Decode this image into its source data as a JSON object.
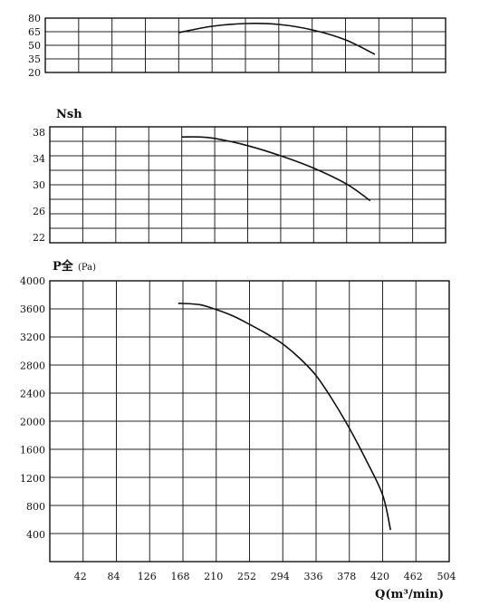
{
  "chart_data": [
    {
      "type": "line",
      "title": "",
      "ylabel": "",
      "xlabel": "",
      "y_ticks": [
        "80",
        "65",
        "50",
        "35",
        "20"
      ],
      "ylim": [
        20,
        80
      ],
      "xlim": [
        0,
        504
      ],
      "grid": true,
      "series": [
        {
          "x": [
            168,
            210,
            252,
            294,
            336,
            378,
            415
          ],
          "y": [
            64,
            71,
            74,
            73,
            67,
            56,
            40
          ]
        }
      ]
    },
    {
      "type": "line",
      "title": "",
      "ylabel": "Nsh",
      "xlabel": "",
      "y_ticks": [
        "38",
        "34",
        "30",
        "26",
        "22"
      ],
      "ylim": [
        22,
        38
      ],
      "xlim": [
        0,
        504
      ],
      "grid": true,
      "series": [
        {
          "x": [
            168,
            189,
            210,
            252,
            294,
            336,
            378,
            408
          ],
          "y": [
            36.6,
            36.6,
            36.4,
            35.4,
            34.0,
            32.3,
            30.1,
            27.8
          ]
        }
      ]
    },
    {
      "type": "line",
      "title": "",
      "ylabel": "P全",
      "ylabel_unit": "(Pa)",
      "xlabel": "Q(m³/min)",
      "x_tick_labels": [
        "42",
        "84",
        "126",
        "168",
        "210",
        "252",
        "294",
        "336",
        "378",
        "420",
        "462",
        "504"
      ],
      "y_ticks": [
        "4000",
        "3600",
        "3200",
        "2800",
        "2400",
        "2000",
        "1600",
        "1200",
        "800",
        "400"
      ],
      "ylim": [
        0,
        4000
      ],
      "xlim": [
        0,
        504
      ],
      "grid": true,
      "series": [
        {
          "x": [
            162,
            189,
            210,
            231,
            252,
            273,
            294,
            315,
            336,
            357,
            378,
            399,
            420,
            430
          ],
          "y": [
            3680,
            3660,
            3590,
            3500,
            3380,
            3250,
            3100,
            2900,
            2650,
            2300,
            1900,
            1450,
            950,
            450
          ]
        }
      ]
    }
  ]
}
